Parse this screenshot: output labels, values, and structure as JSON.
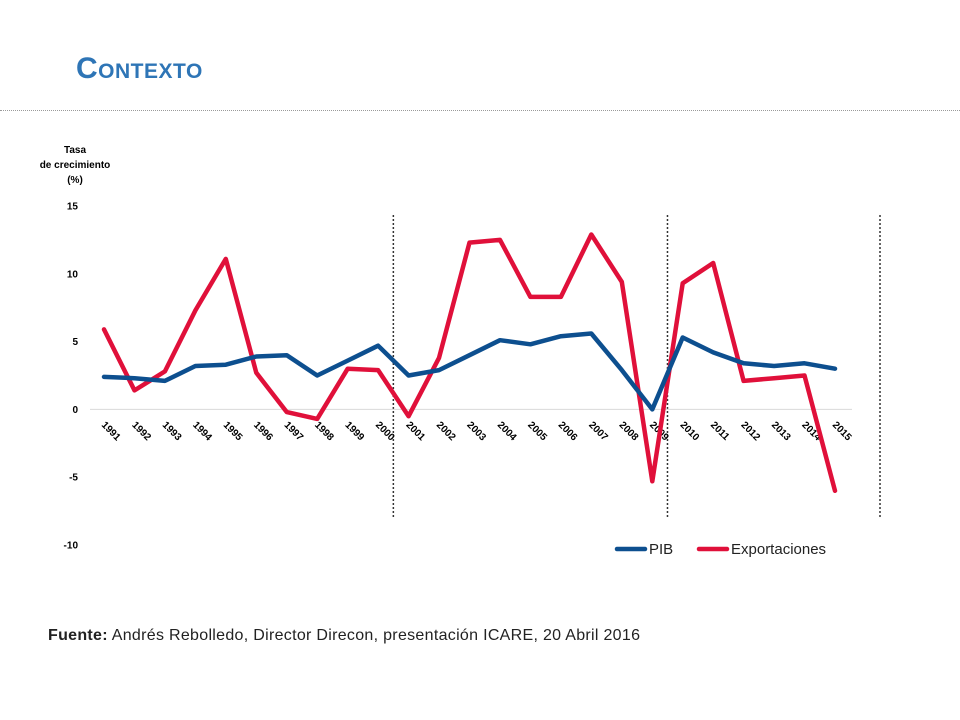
{
  "slide": {
    "title": "Contexto",
    "source_label": "Fuente:",
    "source_text": "Andrés Rebolledo, Director Direcon, presentación ICARE, 20 Abril 2016"
  },
  "colors": {
    "pib": "#0d4f8f",
    "exportaciones": "#e0103a",
    "title": "#2e75b6"
  },
  "chart_data": {
    "type": "line",
    "title": "",
    "ylabel_lines": [
      "Tasa",
      "de crecimiento",
      "(%)"
    ],
    "xlabel": "",
    "ylim": [
      -10,
      15
    ],
    "yticks": [
      15,
      10,
      5,
      0,
      -5,
      -10
    ],
    "x": [
      "1991",
      "1992",
      "1993",
      "1994",
      "1995",
      "1996",
      "1997",
      "1998",
      "1999",
      "2000",
      "2001",
      "2002",
      "2003",
      "2004",
      "2005",
      "2006",
      "2007",
      "2008",
      "2009",
      "2010",
      "2011",
      "2012",
      "2013",
      "2014",
      "2015"
    ],
    "series": [
      {
        "name": "PIB",
        "values": [
          2.4,
          2.3,
          2.1,
          3.2,
          3.3,
          3.9,
          4.0,
          2.5,
          3.6,
          4.7,
          2.5,
          2.9,
          4.0,
          5.1,
          4.8,
          5.4,
          5.6,
          2.9,
          0.0,
          5.3,
          4.2,
          3.4,
          3.2,
          3.4,
          3.0
        ]
      },
      {
        "name": "Exportaciones",
        "values": [
          5.9,
          1.4,
          2.8,
          7.3,
          11.1,
          2.7,
          -0.2,
          -0.7,
          3.0,
          2.9,
          -0.5,
          3.8,
          12.3,
          12.5,
          8.3,
          8.3,
          12.9,
          9.4,
          -5.3,
          9.3,
          10.8,
          2.1,
          2.3,
          2.5,
          -6.0
        ]
      }
    ],
    "vertical_markers": [
      "2000-2001",
      "2009-2010",
      "after 2015"
    ],
    "legend_position": "bottom-right"
  }
}
